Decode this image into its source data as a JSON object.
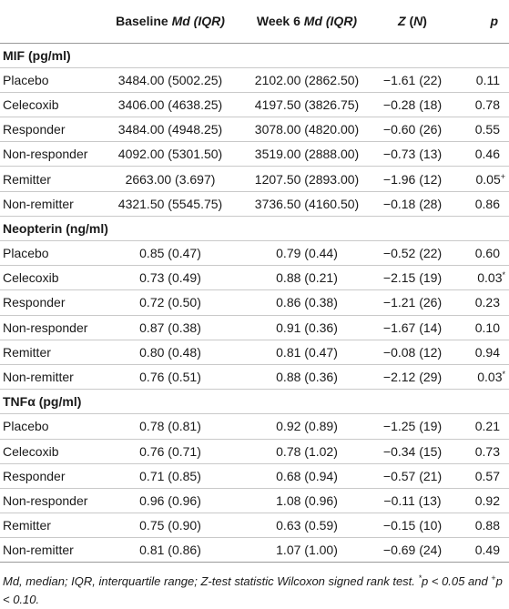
{
  "header": {
    "col1_bold": "Baseline ",
    "col1_italic": "Md (IQR)",
    "col2_bold": "Week 6 ",
    "col2_italic": "Md (IQR)",
    "col3_italic_z": "Z",
    "col3_rest": " (",
    "col3_italic_n": "N",
    "col3_close": ")",
    "col4_italic": "p"
  },
  "sections": [
    {
      "title": "MIF (pg/ml)",
      "rows": [
        {
          "label": "Placebo",
          "baseline": "3484.00 (5002.25)",
          "week6": "2102.00 (2862.50)",
          "z": "−1.61 (22)",
          "p": "0.11",
          "mark": ""
        },
        {
          "label": "Celecoxib",
          "baseline": "3406.00 (4638.25)",
          "week6": "4197.50 (3826.75)",
          "z": "−0.28 (18)",
          "p": "0.78",
          "mark": ""
        },
        {
          "label": "Responder",
          "baseline": "3484.00 (4948.25)",
          "week6": "3078.00 (4820.00)",
          "z": "−0.60 (26)",
          "p": "0.55",
          "mark": ""
        },
        {
          "label": "Non-responder",
          "baseline": "4092.00 (5301.50)",
          "week6": "3519.00 (2888.00)",
          "z": "−0.73 (13)",
          "p": "0.46",
          "mark": ""
        },
        {
          "label": "Remitter",
          "baseline": "2663.00 (3.697)",
          "week6": "1207.50 (2893.00)",
          "z": "−1.96 (12)",
          "p": "0.05",
          "mark": "+"
        },
        {
          "label": "Non-remitter",
          "baseline": "4321.50 (5545.75)",
          "week6": "3736.50 (4160.50)",
          "z": "−0.18 (28)",
          "p": "0.86",
          "mark": ""
        }
      ]
    },
    {
      "title": "Neopterin (ng/ml)",
      "rows": [
        {
          "label": "Placebo",
          "baseline": "0.85 (0.47)",
          "week6": "0.79 (0.44)",
          "z": "−0.52 (22)",
          "p": "0.60",
          "mark": ""
        },
        {
          "label": "Celecoxib",
          "baseline": "0.73 (0.49)",
          "week6": "0.88 (0.21)",
          "z": "−2.15 (19)",
          "p": "0.03",
          "mark": "*"
        },
        {
          "label": "Responder",
          "baseline": "0.72 (0.50)",
          "week6": "0.86 (0.38)",
          "z": "−1.21 (26)",
          "p": "0.23",
          "mark": ""
        },
        {
          "label": "Non-responder",
          "baseline": "0.87 (0.38)",
          "week6": "0.91 (0.36)",
          "z": "−1.67 (14)",
          "p": "0.10",
          "mark": ""
        },
        {
          "label": "Remitter",
          "baseline": "0.80 (0.48)",
          "week6": "0.81 (0.47)",
          "z": "−0.08 (12)",
          "p": "0.94",
          "mark": ""
        },
        {
          "label": "Non-remitter",
          "baseline": "0.76 (0.51)",
          "week6": "0.88 (0.36)",
          "z": "−2.12 (29)",
          "p": "0.03",
          "mark": "*"
        }
      ]
    },
    {
      "title": "TNFα (pg/ml)",
      "rows": [
        {
          "label": "Placebo",
          "baseline": "0.78 (0.81)",
          "week6": "0.92 (0.89)",
          "z": "−1.25 (19)",
          "p": "0.21",
          "mark": ""
        },
        {
          "label": "Celecoxib",
          "baseline": "0.76 (0.71)",
          "week6": "0.78 (1.02)",
          "z": "−0.34 (15)",
          "p": "0.73",
          "mark": ""
        },
        {
          "label": "Responder",
          "baseline": "0.71 (0.85)",
          "week6": "0.68 (0.94)",
          "z": "−0.57 (21)",
          "p": "0.57",
          "mark": ""
        },
        {
          "label": "Non-responder",
          "baseline": "0.96 (0.96)",
          "week6": "1.08 (0.96)",
          "z": "−0.11 (13)",
          "p": "0.92",
          "mark": ""
        },
        {
          "label": "Remitter",
          "baseline": "0.75 (0.90)",
          "week6": "0.63 (0.59)",
          "z": "−0.15 (10)",
          "p": "0.88",
          "mark": ""
        },
        {
          "label": "Non-remitter",
          "baseline": "0.81 (0.86)",
          "week6": "1.07 (1.00)",
          "z": "−0.69 (24)",
          "p": "0.49",
          "mark": ""
        }
      ]
    }
  ],
  "footnote": {
    "main": "Md, median; IQR, interquartile range; Z-test statistic Wilcoxon signed rank test. ",
    "star_mark": "*",
    "star_text": "p < 0.05 and ",
    "plus_mark": "+",
    "plus_text": "p < 0.10."
  }
}
